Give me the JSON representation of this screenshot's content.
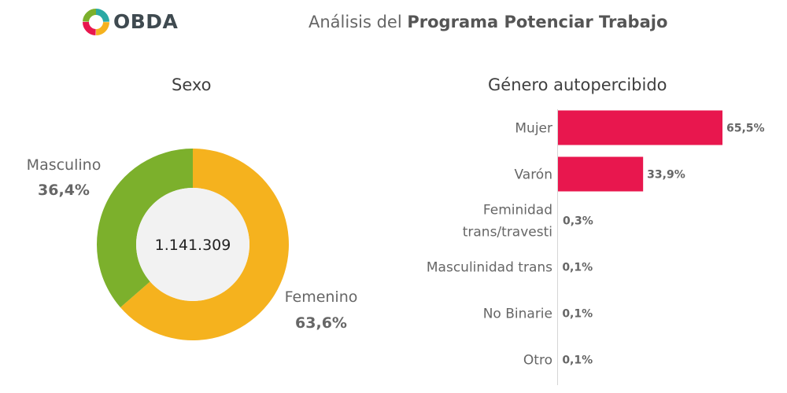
{
  "header": {
    "logo_text": "OBDA",
    "title_prefix": "Análisis del ",
    "title_bold": "Programa Potenciar Trabajo"
  },
  "colors": {
    "masculino": "#7cb02c",
    "femenino": "#f5b21e",
    "bars": "#e8174e",
    "donut_center": "#f2f2f2"
  },
  "chart_data": [
    {
      "type": "pie",
      "title": "Sexo",
      "center_label": "1.141.309",
      "slices": [
        {
          "name": "Femenino",
          "value": 63.6,
          "label": "63,6%",
          "color": "#f5b21e"
        },
        {
          "name": "Masculino",
          "value": 36.4,
          "label": "36,4%",
          "color": "#7cb02c"
        }
      ]
    },
    {
      "type": "bar",
      "orientation": "horizontal",
      "title": "Género autopercibido",
      "categories": [
        "Mujer",
        "Varón",
        "Feminidad trans/travesti",
        "Masculinidad trans",
        "No Binarie",
        "Otro"
      ],
      "category_lines": [
        [
          "Mujer"
        ],
        [
          "Varón"
        ],
        [
          "Feminidad",
          "trans/travesti"
        ],
        [
          "Masculinidad trans"
        ],
        [
          "No Binarie"
        ],
        [
          "Otro"
        ]
      ],
      "values": [
        65.5,
        33.9,
        0.3,
        0.1,
        0.1,
        0.1
      ],
      "value_labels": [
        "65,5%",
        "33,9%",
        "0,3%",
        "0,1%",
        "0,1%",
        "0,1%"
      ],
      "color": "#e8174e"
    }
  ]
}
